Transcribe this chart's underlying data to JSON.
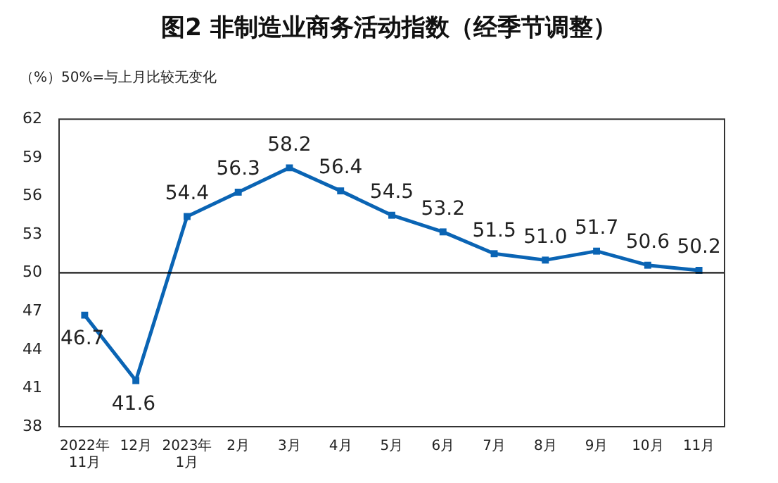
{
  "chart_data": {
    "type": "line",
    "title": "图2  非制造业商务活动指数（经季节调整）",
    "ylabel": "（%）",
    "annotations": [
      "50%=与上月比较无变化"
    ],
    "categories": [
      "2022年\n11月",
      "12月",
      "2023年\n1月",
      "2月",
      "3月",
      "4月",
      "5月",
      "6月",
      "7月",
      "8月",
      "9月",
      "10月",
      "11月"
    ],
    "series": [
      {
        "color": "#0a64b4",
        "values": [
          46.7,
          41.6,
          54.4,
          56.3,
          58.2,
          56.4,
          54.5,
          53.2,
          51.5,
          51.0,
          51.7,
          50.6,
          50.2
        ],
        "value_labels": [
          "46.7",
          "41.6",
          "54.4",
          "56.3",
          "58.2",
          "56.4",
          "54.5",
          "53.2",
          "51.5",
          "51.0",
          "51.7",
          "50.6",
          "50.2"
        ]
      }
    ],
    "ylim": [
      38,
      62
    ],
    "yticks": [
      38,
      41,
      44,
      47,
      50,
      53,
      56,
      59,
      62
    ],
    "grid": false,
    "legend": false,
    "marker": "square",
    "line_style": "solid",
    "ref_lines": [
      {
        "axis": "y",
        "value": 50,
        "color": "#000000"
      }
    ]
  }
}
